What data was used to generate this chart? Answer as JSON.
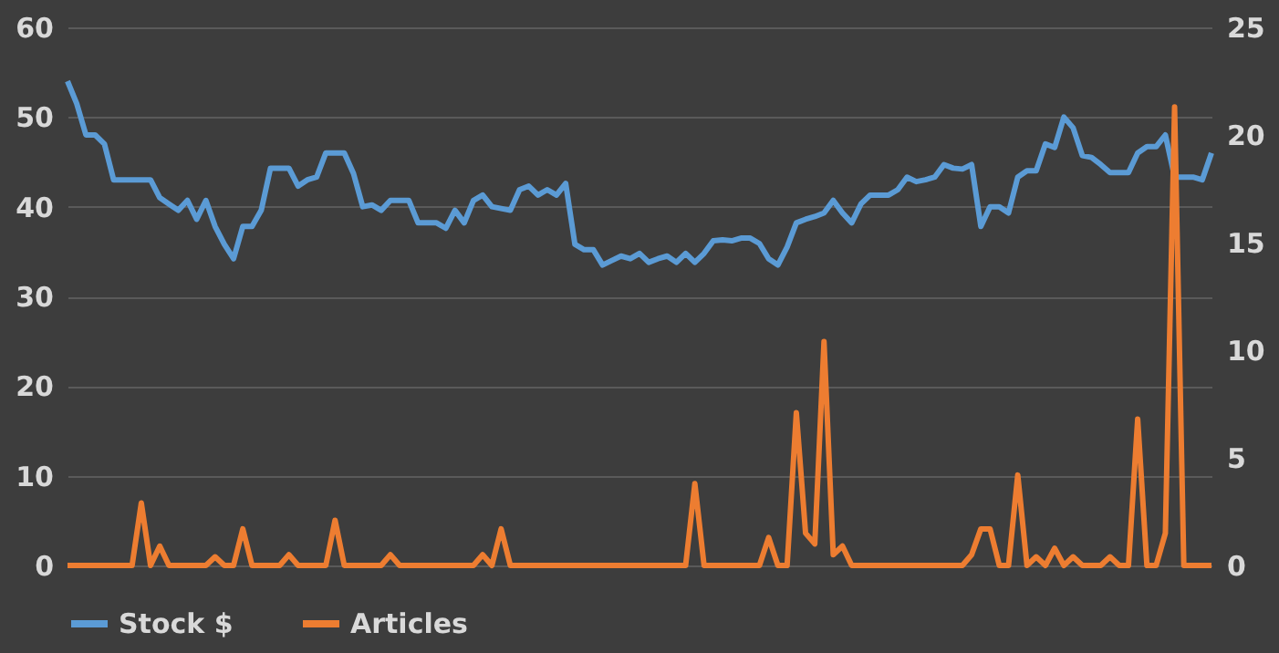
{
  "chart_data": {
    "type": "line",
    "categories": [
      null,
      null,
      null,
      null,
      null,
      null,
      null,
      null,
      null,
      null,
      null,
      null,
      null,
      null,
      null,
      null,
      null,
      null,
      null,
      null,
      null,
      null,
      null,
      null,
      null,
      null,
      null,
      null,
      null,
      null,
      null,
      null,
      null,
      null,
      null,
      null,
      null,
      null,
      null,
      null,
      null,
      null,
      null,
      null,
      null,
      null,
      null,
      null,
      null,
      null,
      null,
      null,
      null,
      null,
      null,
      null,
      null,
      null,
      null,
      null,
      null,
      null,
      null,
      null,
      null,
      null,
      null,
      null,
      null,
      null,
      null,
      null,
      null,
      null,
      null,
      null,
      null,
      null,
      null,
      null,
      null,
      null,
      null,
      null,
      null,
      null,
      null,
      null,
      null,
      null,
      null,
      null,
      null,
      null,
      null,
      null,
      null,
      null,
      null,
      null,
      null,
      null,
      null,
      null,
      null,
      null,
      null,
      null,
      null,
      null,
      null,
      null,
      null,
      null,
      null,
      null,
      null,
      null,
      null,
      null,
      null,
      null,
      null,
      null,
      null
    ],
    "series": [
      {
        "name": "Stock $",
        "color": "#5b9bd5",
        "values": [
          54,
          51.5,
          48,
          48,
          47,
          43,
          43,
          43,
          43,
          43,
          41,
          40.3,
          39.6,
          40.7,
          38.6,
          40.7,
          37.8,
          35.8,
          34.2,
          37.8,
          37.8,
          39.6,
          44.3,
          44.3,
          44.3,
          42.3,
          43,
          43.3,
          46,
          46,
          46,
          43.7,
          40,
          40.2,
          39.6,
          40.7,
          40.7,
          40.7,
          38.2,
          38.2,
          38.2,
          37.6,
          39.6,
          38.2,
          40.7,
          41.3,
          40,
          39.8,
          39.6,
          41.9,
          42.3,
          41.3,
          41.9,
          41.3,
          42.6,
          35.8,
          35.2,
          35.2,
          33.5,
          34,
          34.5,
          34.2,
          34.8,
          33.8,
          34.2,
          34.5,
          33.8,
          34.8,
          33.8,
          34.8,
          36.2,
          36.3,
          36.2,
          36.5,
          36.5,
          35.9,
          34.2,
          33.5,
          35.5,
          38.2,
          38.6,
          38.9,
          39.3,
          40.7,
          39.3,
          38.2,
          40.3,
          41.3,
          41.3,
          41.3,
          41.9,
          43.3,
          42.8,
          43,
          43.3,
          44.7,
          44.3,
          44.2,
          44.7,
          37.8,
          40,
          40,
          39.3,
          43.3,
          44,
          44,
          47,
          46.6,
          50,
          48.8,
          45.7,
          45.5,
          44.7,
          43.8,
          43.8,
          43.8,
          46,
          46.7,
          46.7,
          48,
          43.3,
          43.3,
          43.3,
          43,
          46
        ]
      },
      {
        "name": "Articles",
        "color": "#ed7d31",
        "axis": "y2",
        "values": [
          0,
          0,
          0,
          0,
          0,
          0,
          0,
          0,
          2.9,
          0,
          0.9,
          0,
          0,
          0,
          0,
          0,
          0.4,
          0,
          0,
          1.7,
          0,
          0,
          0,
          0,
          0.5,
          0,
          0,
          0,
          0,
          2.1,
          0,
          0,
          0,
          0,
          0,
          0.5,
          0,
          0,
          0,
          0,
          0,
          0,
          0,
          0,
          0,
          0.5,
          0,
          1.7,
          0,
          0,
          0,
          0,
          0,
          0,
          0,
          0,
          0,
          0,
          0,
          0,
          0,
          0,
          0,
          0,
          0,
          0,
          0,
          0,
          3.8,
          0,
          0,
          0,
          0,
          0,
          0,
          0,
          1.3,
          0,
          0,
          7.1,
          1.5,
          1,
          10.4,
          0.5,
          0.9,
          0,
          0,
          0,
          0,
          0,
          0,
          0,
          0,
          0,
          0,
          0,
          0,
          0,
          0.5,
          1.7,
          1.7,
          0,
          0,
          4.2,
          0,
          0.4,
          0,
          0.8,
          0,
          0.4,
          0,
          0,
          0,
          0.4,
          0,
          0,
          6.8,
          0,
          0,
          1.5,
          21.3,
          0,
          0,
          0,
          0
        ]
      }
    ],
    "ylim": [
      0,
      60
    ],
    "yticks": [
      0,
      10,
      20,
      30,
      40,
      50,
      60
    ],
    "y2lim": [
      0,
      25
    ],
    "y2ticks": [
      0,
      5,
      10,
      15,
      20,
      25
    ],
    "grid": "y",
    "legend": "bottom",
    "marker": "none",
    "line_style": "solid",
    "tick_labels": "y"
  }
}
